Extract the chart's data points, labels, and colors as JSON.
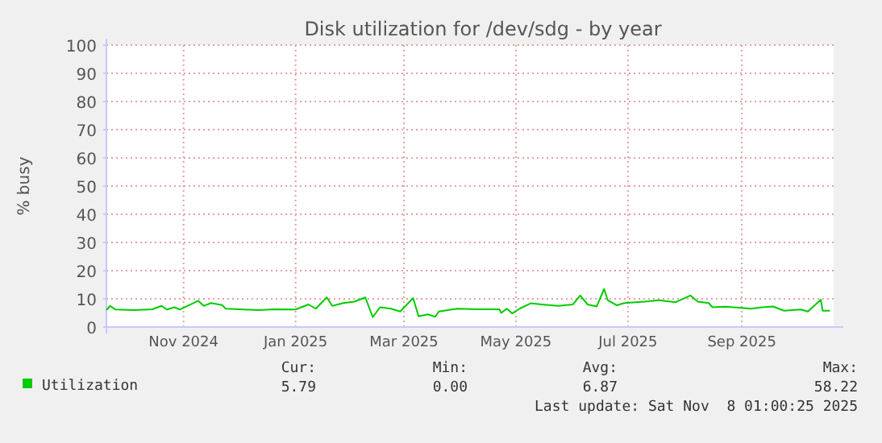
{
  "chart_data": {
    "type": "line",
    "title": "Disk utilization for /dev/sdg - by year",
    "ylabel": "% busy",
    "xlim": [
      "2024-09-20",
      "2025-10-21"
    ],
    "xticks": [
      {
        "value": "2024-11-01",
        "label": "Nov 2024"
      },
      {
        "value": "2025-01-01",
        "label": "Jan 2025"
      },
      {
        "value": "2025-03-01",
        "label": "Mar 2025"
      },
      {
        "value": "2025-05-01",
        "label": "May 2025"
      },
      {
        "value": "2025-07-01",
        "label": "Jul 2025"
      },
      {
        "value": "2025-09-01",
        "label": "Sep 2025"
      }
    ],
    "ylim": [
      0,
      100
    ],
    "yticks": [
      0,
      10,
      20,
      30,
      40,
      50,
      60,
      70,
      80,
      90,
      100
    ],
    "grid": true,
    "legend": "bottom left",
    "series": [
      {
        "name": "Utilization",
        "color": "#00cc00",
        "x": [
          "2024-09-20",
          "2024-09-22",
          "2024-09-25",
          "2024-10-05",
          "2024-10-15",
          "2024-10-20",
          "2024-10-23",
          "2024-10-27",
          "2024-10-30",
          "2024-11-09",
          "2024-11-12",
          "2024-11-16",
          "2024-11-22",
          "2024-11-24",
          "2024-12-12",
          "2024-12-20",
          "2025-01-01",
          "2025-01-08",
          "2025-01-12",
          "2025-01-18",
          "2025-01-21",
          "2025-01-27",
          "2025-02-02",
          "2025-02-08",
          "2025-02-12",
          "2025-02-16",
          "2025-02-22",
          "2025-02-27",
          "2025-03-06",
          "2025-03-09",
          "2025-03-14",
          "2025-03-18",
          "2025-03-20",
          "2025-03-30",
          "2025-04-10",
          "2025-04-22",
          "2025-04-23",
          "2025-04-26",
          "2025-04-29",
          "2025-05-03",
          "2025-05-09",
          "2025-05-15",
          "2025-05-24",
          "2025-06-01",
          "2025-06-05",
          "2025-06-09",
          "2025-06-14",
          "2025-06-18",
          "2025-06-20",
          "2025-06-25",
          "2025-06-29",
          "2025-07-10",
          "2025-07-18",
          "2025-07-27",
          "2025-08-04",
          "2025-08-08",
          "2025-08-14",
          "2025-08-16",
          "2025-08-23",
          "2025-09-01",
          "2025-09-06",
          "2025-09-12",
          "2025-09-18",
          "2025-09-24",
          "2025-10-03",
          "2025-10-07",
          "2025-10-14",
          "2025-10-15",
          "2025-10-19"
        ],
        "values": [
          6.0,
          7.5,
          6.2,
          6.0,
          6.3,
          7.5,
          6.2,
          7.0,
          6.2,
          9.3,
          7.5,
          8.5,
          7.8,
          6.5,
          6.0,
          6.3,
          6.2,
          8.0,
          6.5,
          10.5,
          7.5,
          8.5,
          9.0,
          10.5,
          3.5,
          7.0,
          6.5,
          5.5,
          10.3,
          3.8,
          4.5,
          3.6,
          5.5,
          6.5,
          6.3,
          6.3,
          5.0,
          6.5,
          4.8,
          6.5,
          8.4,
          8.0,
          7.5,
          8.0,
          11.2,
          8.0,
          7.3,
          13.5,
          9.5,
          7.7,
          8.5,
          9.0,
          9.5,
          8.8,
          11.2,
          9.0,
          8.5,
          7.0,
          7.2,
          6.8,
          6.5,
          7.0,
          7.3,
          5.8,
          6.2,
          5.5,
          9.7,
          5.8,
          5.8
        ]
      }
    ],
    "annotations": [
      "Cur:",
      "Min:",
      "Avg:",
      "Max:",
      "5.79",
      "0.00",
      "6.87",
      "58.22",
      "Last update: Sat Nov  8 01:00:25 2025"
    ]
  }
}
